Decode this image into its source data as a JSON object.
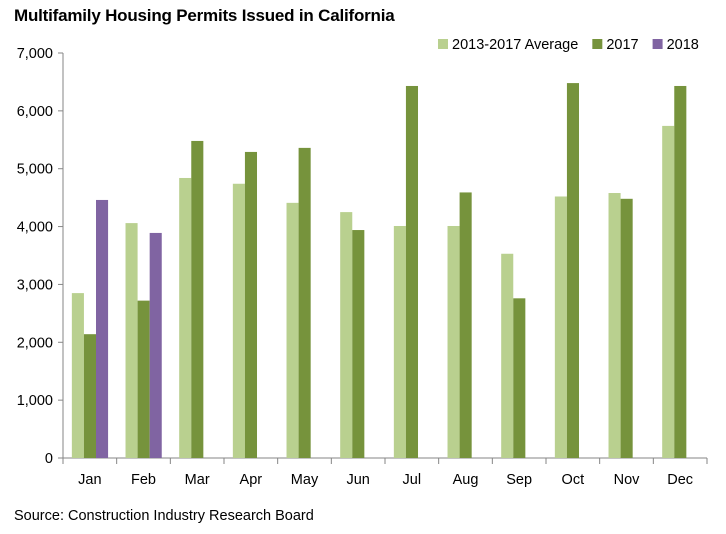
{
  "chart_data": {
    "type": "bar",
    "title": "Multifamily Housing Permits Issued in California",
    "source": "Source: Construction Industry Research Board",
    "categories": [
      "Jan",
      "Feb",
      "Mar",
      "Apr",
      "May",
      "Jun",
      "Jul",
      "Aug",
      "Sep",
      "Oct",
      "Nov",
      "Dec"
    ],
    "series": [
      {
        "name": "2013-2017 Average",
        "color": "#b9d08f",
        "values": [
          2850,
          4060,
          4840,
          4740,
          4410,
          4250,
          4010,
          4010,
          3530,
          4520,
          4580,
          5740
        ]
      },
      {
        "name": "2017",
        "color": "#76933c",
        "values": [
          2140,
          2720,
          5480,
          5290,
          5360,
          3940,
          6430,
          4590,
          2760,
          6480,
          4480,
          6430
        ]
      },
      {
        "name": "2018",
        "color": "#8064a2",
        "values": [
          4460,
          3890,
          null,
          null,
          null,
          null,
          null,
          null,
          null,
          null,
          null,
          null
        ]
      }
    ],
    "y_ticks": [
      "0",
      "1,000",
      "2,000",
      "3,000",
      "4,000",
      "5,000",
      "6,000",
      "7,000"
    ],
    "ylim": [
      0,
      7000
    ],
    "grid": false,
    "legend_position": "top-right"
  }
}
